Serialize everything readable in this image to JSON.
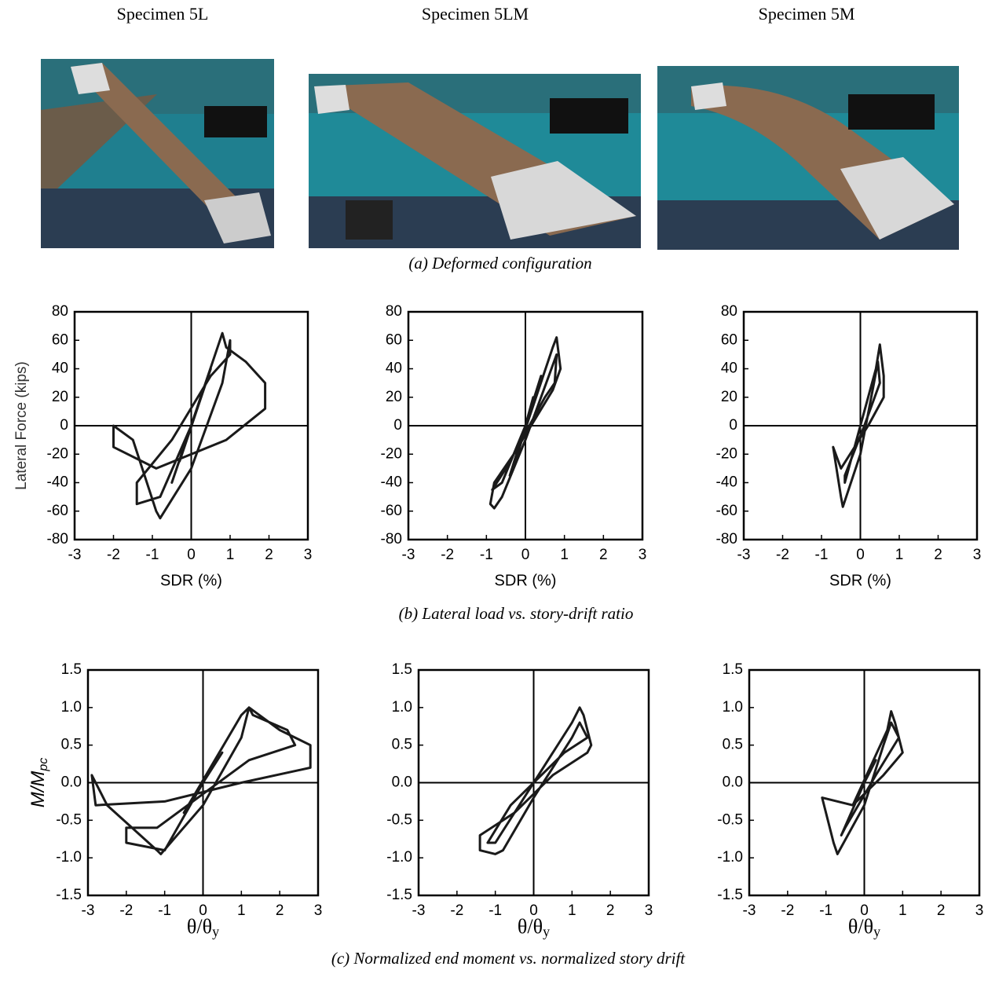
{
  "specimens": [
    "Specimen 5L",
    "Specimen 5LM",
    "Specimen 5M"
  ],
  "captions": [
    "(a)  Deformed configuration",
    "(b)  Lateral load vs. story-drift ratio",
    "(c)  Normalized end moment vs. normalized story drift"
  ],
  "chart_data": [
    {
      "type": "line",
      "xlabel": "SDR (%)",
      "ylabel": "Lateral Force (kips)",
      "color": "#1a1a1a",
      "xlim": [
        -3,
        3
      ],
      "ylim": [
        -80,
        80
      ],
      "xticks": [
        -3,
        -2,
        -1,
        0,
        1,
        2,
        3
      ],
      "yticks": [
        -80,
        -60,
        -40,
        -20,
        0,
        20,
        40,
        60,
        80
      ],
      "x": [
        0,
        0.3,
        -0.3,
        0.5,
        -0.5,
        0.8,
        0.9,
        1.4,
        1.9,
        1.9,
        0.9,
        -0.9,
        -2,
        -2,
        -1.5,
        -0.9,
        -0.8,
        0,
        0.8,
        1.0,
        1.0,
        0.5,
        -0.5,
        -1.4,
        -1.4,
        -0.8,
        0
      ],
      "values": [
        0,
        25,
        -25,
        40,
        -40,
        65,
        55,
        45,
        30,
        12,
        -10,
        -30,
        -15,
        0,
        -10,
        -60,
        -65,
        -30,
        30,
        60,
        50,
        35,
        -10,
        -40,
        -55,
        -50,
        0
      ]
    },
    {
      "type": "line",
      "xlabel": "SDR (%)",
      "color": "#1a1a1a",
      "xlim": [
        -3,
        3
      ],
      "ylim": [
        -80,
        80
      ],
      "xticks": [
        -3,
        -2,
        -1,
        0,
        1,
        2,
        3
      ],
      "yticks": [
        -80,
        -60,
        -40,
        -20,
        0,
        20,
        40,
        60,
        80
      ],
      "x": [
        0,
        0.2,
        -0.2,
        0.4,
        -0.4,
        0.7,
        0.8,
        0.9,
        0.7,
        -0.3,
        -0.8,
        -0.9,
        -0.8,
        -0.6,
        0,
        0.6,
        0.8,
        0.75,
        0.5,
        -0.5,
        -0.85,
        -0.6,
        0
      ],
      "values": [
        0,
        20,
        -20,
        35,
        -35,
        55,
        62,
        40,
        25,
        -20,
        -40,
        -55,
        -58,
        -50,
        -10,
        35,
        50,
        30,
        20,
        -30,
        -45,
        -40,
        0
      ]
    },
    {
      "type": "line",
      "xlabel": "SDR (%)",
      "color": "#1a1a1a",
      "xlim": [
        -3,
        3
      ],
      "ylim": [
        -80,
        80
      ],
      "xticks": [
        -3,
        -2,
        -1,
        0,
        1,
        2,
        3
      ],
      "yticks": [
        -80,
        -60,
        -40,
        -20,
        0,
        20,
        40,
        60,
        80
      ],
      "x": [
        0,
        0.2,
        -0.2,
        0.4,
        0.5,
        0.6,
        0.6,
        0.2,
        -0.5,
        -0.7,
        -0.5,
        -0.45,
        0,
        0.35,
        0.45,
        0.5,
        0.1,
        -0.4,
        -0.4,
        0
      ],
      "values": [
        0,
        20,
        -20,
        40,
        57,
        35,
        20,
        0,
        -30,
        -15,
        -50,
        -57,
        -20,
        30,
        45,
        30,
        0,
        -35,
        -40,
        0
      ]
    },
    {
      "type": "line",
      "xlabel": "θ/θ",
      "xlabel_sub": "y",
      "ylabel": "M/M",
      "ylabel_sub": "pc",
      "color": "#1a1a1a",
      "xlim": [
        -3,
        3
      ],
      "ylim": [
        -1.5,
        1.5
      ],
      "xticks": [
        -3,
        -2,
        -1,
        0,
        1,
        2,
        3
      ],
      "yticks": [
        {
          "value": -1.5,
          "label": "-1.5"
        },
        {
          "value": -1,
          "label": "-1.0"
        },
        -0.5,
        {
          "value": 0,
          "label": "0.0"
        },
        0.5,
        {
          "value": 1,
          "label": "1.0"
        },
        1.5
      ],
      "x": [
        0,
        0.5,
        -0.5,
        1,
        1.2,
        2,
        2.8,
        2.8,
        1,
        -1,
        -2.8,
        -2.9,
        -2.5,
        -1.2,
        -1.1,
        0,
        1,
        1.2,
        1.3,
        2.2,
        2.4,
        1.2,
        -1.2,
        -2,
        -2,
        -1,
        0
      ],
      "values": [
        0,
        0.4,
        -0.4,
        0.9,
        1,
        0.7,
        0.5,
        0.2,
        0,
        -0.25,
        -0.3,
        0.1,
        -0.3,
        -0.9,
        -0.95,
        -0.3,
        0.6,
        1,
        0.9,
        0.7,
        0.5,
        0.3,
        -0.6,
        -0.6,
        -0.8,
        -0.9,
        0
      ]
    },
    {
      "type": "line",
      "xlabel": "θ/θ",
      "xlabel_sub": "y",
      "color": "#1a1a1a",
      "xlim": [
        -3,
        3
      ],
      "ylim": [
        -1.5,
        1.5
      ],
      "xticks": [
        -3,
        -2,
        -1,
        0,
        1,
        2,
        3
      ],
      "yticks": [
        {
          "value": -1.5,
          "label": "-1.5"
        },
        {
          "value": -1,
          "label": "-1.0"
        },
        -0.5,
        {
          "value": 0,
          "label": "0.0"
        },
        0.5,
        {
          "value": 1,
          "label": "1.0"
        },
        1.5
      ],
      "x": [
        0,
        0.5,
        -0.5,
        1,
        1.2,
        1.3,
        1.5,
        1.4,
        0.5,
        -0.5,
        -1.4,
        -1.4,
        -1,
        -0.8,
        0,
        1,
        1.2,
        1.4,
        0.8,
        -0.6,
        -1.2,
        -1,
        0
      ],
      "values": [
        0,
        0.4,
        -0.4,
        0.8,
        1,
        0.9,
        0.5,
        0.4,
        0.1,
        -0.4,
        -0.7,
        -0.9,
        -0.95,
        -0.9,
        -0.2,
        0.6,
        0.8,
        0.6,
        0.4,
        -0.3,
        -0.8,
        -0.8,
        0
      ]
    },
    {
      "type": "line",
      "xlabel": "θ/θ",
      "xlabel_sub": "y",
      "color": "#1a1a1a",
      "xlim": [
        -3,
        3
      ],
      "ylim": [
        -1.5,
        1.5
      ],
      "xticks": [
        -3,
        -2,
        -1,
        0,
        1,
        2,
        3
      ],
      "yticks": [
        {
          "value": -1.5,
          "label": "-1.5"
        },
        {
          "value": -1,
          "label": "-1.0"
        },
        -0.5,
        {
          "value": 0,
          "label": "0.0"
        },
        0.5,
        {
          "value": 1,
          "label": "1.0"
        },
        1.5
      ],
      "x": [
        0,
        0.3,
        -0.3,
        0.6,
        0.7,
        0.8,
        1,
        0.5,
        -0.3,
        -1.1,
        -0.8,
        -0.7,
        0,
        0.5,
        0.7,
        0.9,
        0.3,
        -0.5,
        -0.6,
        0
      ],
      "values": [
        0,
        0.3,
        -0.3,
        0.7,
        0.95,
        0.8,
        0.4,
        0.1,
        -0.3,
        -0.2,
        -0.8,
        -0.95,
        -0.3,
        0.5,
        0.8,
        0.6,
        0.1,
        -0.6,
        -0.7,
        0
      ]
    }
  ]
}
